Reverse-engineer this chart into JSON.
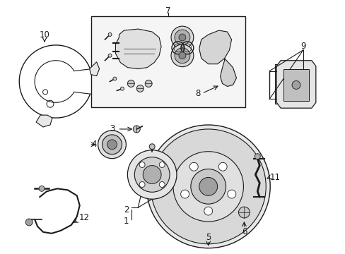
{
  "bg_color": "#ffffff",
  "line_color": "#1a1a1a",
  "box_fill": "#f0f0f0",
  "font_size": 8.5,
  "figsize": [
    4.89,
    3.6
  ],
  "dpi": 100
}
